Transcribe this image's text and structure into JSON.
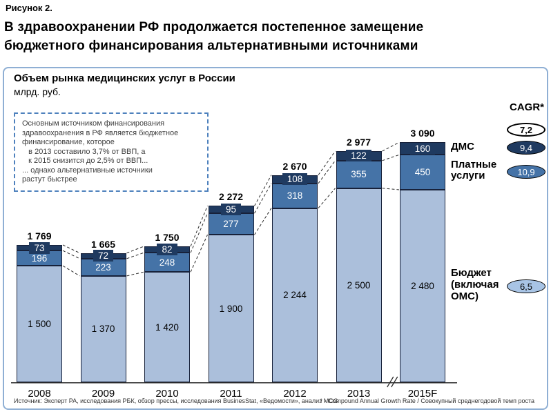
{
  "figure_label": "Рисунок 2.",
  "title": "В здравоохранении РФ продолжается постепенное замещение\nбюджетного финансирования альтернативными источниками",
  "panel": {
    "title": "Объем рынка медицинских услуг в России",
    "subtitle": "млрд. руб.",
    "annotation": "Основным источником финансирования\nздравоохранения в РФ является бюджетное\nфинансирование, которое\n   в 2013 составило 3,7% от ВВП, а\n   к 2015 снизится до 2,5% от ВВП...\n... однако альтернативные источники\nрастут быстрее",
    "cagr_header": "CAGR*",
    "source_note": "Источник: Эксперт РА, исследования РБК, обзор прессы, исследования BusinesStat, «Ведомости», анализ MCG",
    "cagr_note": "* - Compound Annual Growth Rate / Совокупный среднегодовой темп роста"
  },
  "legend": {
    "dms_label": "ДМС",
    "paid_label": "Платные\nуслуги",
    "budget_label": "Бюджет\n(включая\nОМС)"
  },
  "cagr_badges": {
    "total": "7,2",
    "dms": "9,4",
    "paid": "10,9",
    "budget": "6,5"
  },
  "colors": {
    "budget_fill": "#ABBFDB",
    "paid_fill": "#4573A7",
    "dms_fill": "#1F3A60",
    "panel_border": "#8FAFD4",
    "annotation_border": "#4E81BD"
  },
  "chart_data": {
    "type": "bar",
    "stacked": true,
    "title": "Объем рынка медицинских услуг в России",
    "unit": "млрд. руб.",
    "categories": [
      "2008",
      "2009",
      "2010",
      "2011",
      "2012",
      "2013",
      "2015F"
    ],
    "axis_break_after": "2013",
    "series": [
      {
        "name": "Бюджет (включая ОМС)",
        "cagr": 6.5,
        "color": "#ABBFDB",
        "label_color": "#000000",
        "values": [
          1500,
          1370,
          1420,
          1900,
          2244,
          2500,
          2480
        ],
        "value_labels": [
          "1 500",
          "1 370",
          "1 420",
          "1 900",
          "2 244",
          "2 500",
          "2 480"
        ]
      },
      {
        "name": "Платные услуги",
        "cagr": 10.9,
        "color": "#4573A7",
        "label_color": "#FFFFFF",
        "values": [
          196,
          223,
          248,
          277,
          318,
          355,
          450
        ],
        "value_labels": [
          "196",
          "223",
          "248",
          "277",
          "318",
          "355",
          "450"
        ]
      },
      {
        "name": "ДМС",
        "cagr": 9.4,
        "color": "#1F3A60",
        "label_color": "#FFFFFF",
        "values": [
          73,
          72,
          82,
          95,
          108,
          122,
          160
        ],
        "value_labels": [
          "73",
          "72",
          "82",
          "95",
          "108",
          "122",
          "160"
        ]
      }
    ],
    "totals": [
      1769,
      1665,
      1750,
      2272,
      2670,
      2977,
      3090
    ],
    "total_labels": [
      "1 769",
      "1 665",
      "1 750",
      "2 272",
      "2 670",
      "2 977",
      "3 090"
    ],
    "total_cagr": 7.2
  }
}
